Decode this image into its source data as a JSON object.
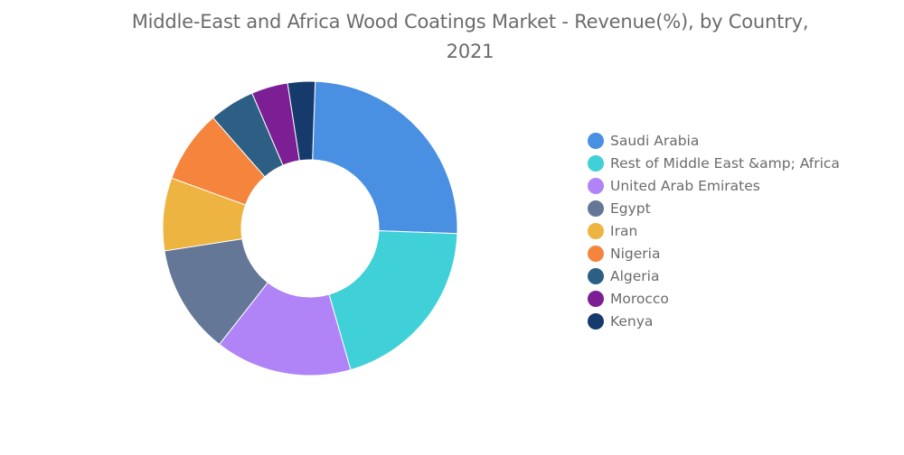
{
  "chart_data": {
    "type": "pie",
    "title": "Middle-East and Africa Wood Coatings Market - Revenue(%), by Country, 2021",
    "categories": [
      "Saudi Arabia",
      "Rest of Middle East &amp; Africa",
      "United Arab Emirates",
      "Egypt",
      "Iran",
      "Nigeria",
      "Algeria",
      "Morocco",
      "Kenya"
    ],
    "values": [
      25,
      20,
      15,
      12,
      8,
      8,
      5,
      4,
      3
    ],
    "colors": [
      "#4a90e2",
      "#40d0d8",
      "#b084f7",
      "#647797",
      "#edb442",
      "#f5843d",
      "#2d5f85",
      "#7d1f94",
      "#153a6b"
    ],
    "donut": true,
    "legend_position": "right"
  }
}
